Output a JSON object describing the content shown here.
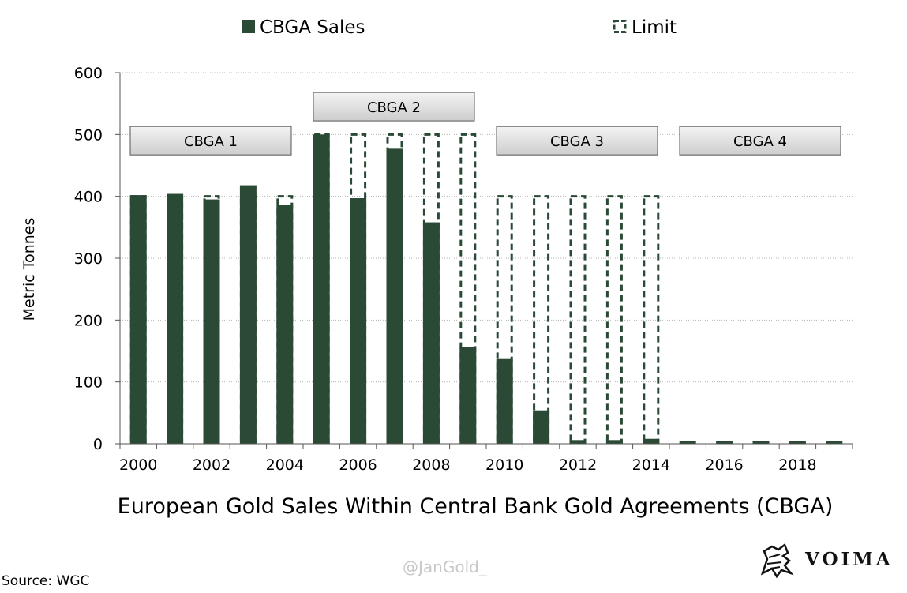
{
  "chart_data": {
    "type": "bar",
    "title": "European Gold Sales Within Central Bank Gold Agreements (CBGA)",
    "xlabel": "",
    "ylabel": "Metric Tonnes",
    "ylim": [
      0,
      600
    ],
    "yticks": [
      0,
      100,
      200,
      300,
      400,
      500,
      600
    ],
    "grid": true,
    "legend_position": "top",
    "categories": [
      "2000",
      "2001",
      "2002",
      "2003",
      "2004",
      "2005",
      "2006",
      "2007",
      "2008",
      "2009",
      "2010",
      "2011",
      "2012",
      "2013",
      "2014",
      "2015",
      "2016",
      "2017",
      "2018",
      "2019"
    ],
    "xtick_labels": [
      "2000",
      "2002",
      "2004",
      "2006",
      "2008",
      "2010",
      "2012",
      "2014",
      "2016",
      "2018"
    ],
    "series": [
      {
        "name": "CBGA Sales",
        "style": "solid",
        "values": [
          402,
          404,
          395,
          418,
          386,
          500,
          397,
          477,
          358,
          157,
          137,
          54,
          6,
          6,
          8,
          4,
          4,
          4,
          4,
          4
        ]
      },
      {
        "name": "Limit",
        "style": "dashed-outline",
        "values": [
          400,
          400,
          400,
          400,
          400,
          500,
          500,
          500,
          500,
          500,
          400,
          400,
          400,
          400,
          400,
          null,
          null,
          null,
          null,
          null
        ]
      }
    ],
    "agreements": [
      {
        "label": "CBGA 1",
        "start": 2000,
        "end": 2004,
        "level": 490
      },
      {
        "label": "CBGA 2",
        "start": 2005,
        "end": 2009,
        "level": 545
      },
      {
        "label": "CBGA 3",
        "start": 2010,
        "end": 2014,
        "level": 490
      },
      {
        "label": "CBGA 4",
        "start": 2015,
        "end": 2019,
        "level": 490
      }
    ],
    "colors": {
      "bar": "#2b4a35",
      "grid": "#b5b5b5",
      "box_top": "#f2f2f2",
      "box_bottom": "#cfcfcf"
    }
  },
  "footer": {
    "source": "Source: WGC",
    "watermark": "@JanGold_",
    "brand": "VOIMA"
  }
}
